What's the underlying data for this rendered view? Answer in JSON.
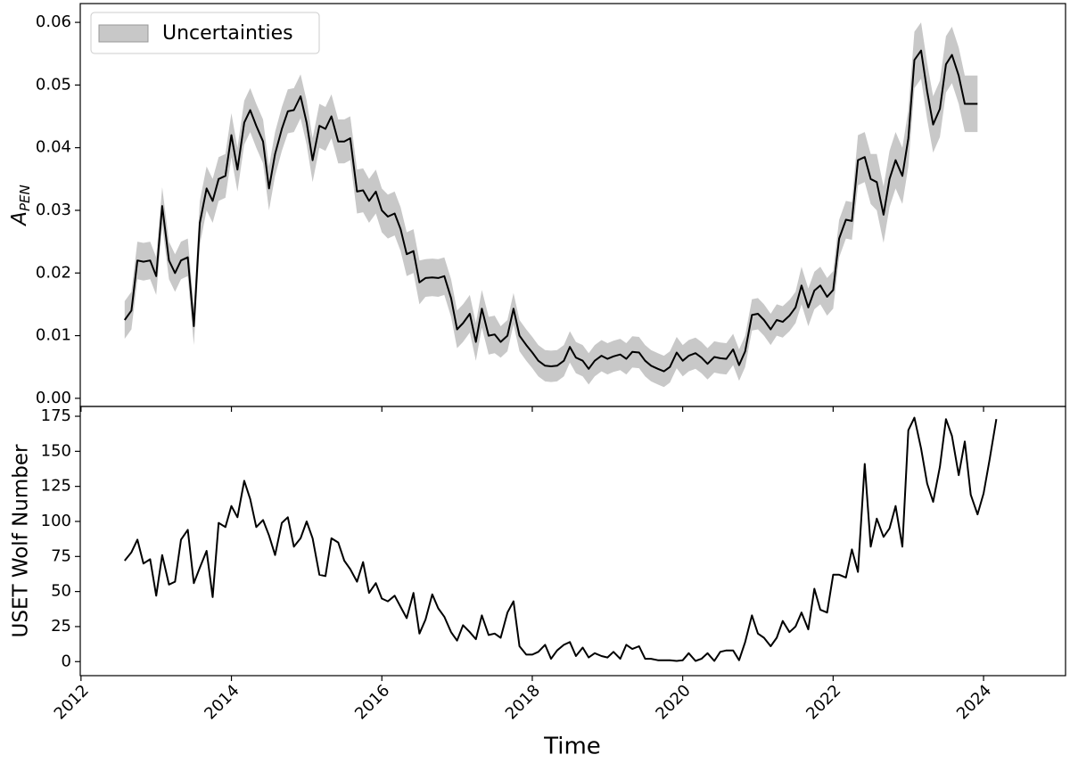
{
  "chart_data": [
    {
      "type": "line",
      "ylabel": "A",
      "ylabel_subscript": "PEN",
      "x": [
        2012.58,
        2012.67,
        2012.75,
        2012.83,
        2012.92,
        2013,
        2013.08,
        2013.17,
        2013.25,
        2013.33,
        2013.42,
        2013.5,
        2013.58,
        2013.67,
        2013.75,
        2013.83,
        2013.92,
        2014,
        2014.08,
        2014.17,
        2014.25,
        2014.33,
        2014.42,
        2014.5,
        2014.58,
        2014.67,
        2014.75,
        2014.83,
        2014.92,
        2015,
        2015.08,
        2015.17,
        2015.25,
        2015.33,
        2015.42,
        2015.5,
        2015.58,
        2015.67,
        2015.75,
        2015.83,
        2015.92,
        2016,
        2016.08,
        2016.17,
        2016.25,
        2016.33,
        2016.42,
        2016.5,
        2016.58,
        2016.67,
        2016.75,
        2016.83,
        2016.92,
        2017,
        2017.08,
        2017.17,
        2017.25,
        2017.33,
        2017.42,
        2017.5,
        2017.58,
        2017.67,
        2017.75,
        2017.83,
        2017.92,
        2018,
        2018.08,
        2018.17,
        2018.25,
        2018.33,
        2018.42,
        2018.5,
        2018.58,
        2018.67,
        2018.75,
        2018.83,
        2018.92,
        2019,
        2019.08,
        2019.17,
        2019.25,
        2019.33,
        2019.42,
        2019.5,
        2019.58,
        2019.67,
        2019.75,
        2019.83,
        2019.92,
        2020,
        2020.08,
        2020.17,
        2020.25,
        2020.33,
        2020.42,
        2020.5,
        2020.58,
        2020.67,
        2020.75,
        2020.83,
        2020.92,
        2021,
        2021.08,
        2021.17,
        2021.25,
        2021.33,
        2021.42,
        2021.5,
        2021.58,
        2021.67,
        2021.75,
        2021.83,
        2021.92,
        2022,
        2022.08,
        2022.17,
        2022.25,
        2022.33,
        2022.42,
        2022.5,
        2022.58,
        2022.67,
        2022.75,
        2022.83,
        2022.92,
        2023,
        2023.08,
        2023.17,
        2023.25,
        2023.33,
        2023.42,
        2023.5,
        2023.58,
        2023.67,
        2023.75,
        2023.83,
        2023.92
      ],
      "series": [
        {
          "color": "#000000",
          "values": [
            0.0125,
            0.014,
            0.022,
            0.0218,
            0.022,
            0.0195,
            0.0307,
            0.022,
            0.02,
            0.022,
            0.0225,
            0.0115,
            0.028,
            0.0335,
            0.0315,
            0.035,
            0.0355,
            0.042,
            0.0365,
            0.044,
            0.046,
            0.0435,
            0.041,
            0.0335,
            0.039,
            0.043,
            0.0458,
            0.046,
            0.0482,
            0.044,
            0.038,
            0.0435,
            0.043,
            0.045,
            0.041,
            0.041,
            0.0415,
            0.033,
            0.0332,
            0.0315,
            0.033,
            0.03,
            0.029,
            0.0295,
            0.027,
            0.023,
            0.0235,
            0.0185,
            0.0192,
            0.0193,
            0.0192,
            0.0195,
            0.016,
            0.011,
            0.012,
            0.0135,
            0.009,
            0.0143,
            0.01,
            0.0102,
            0.009,
            0.01,
            0.0143,
            0.01,
            0.0085,
            0.0073,
            0.006,
            0.0052,
            0.0051,
            0.0052,
            0.006,
            0.0082,
            0.0065,
            0.006,
            0.0047,
            0.006,
            0.0068,
            0.0063,
            0.0067,
            0.007,
            0.0063,
            0.0074,
            0.0073,
            0.006,
            0.0052,
            0.0047,
            0.0043,
            0.005,
            0.0073,
            0.006,
            0.0068,
            0.0072,
            0.0065,
            0.0055,
            0.0066,
            0.0064,
            0.0063,
            0.0078,
            0.0053,
            0.0075,
            0.0133,
            0.0135,
            0.0125,
            0.011,
            0.0125,
            0.0122,
            0.0132,
            0.0145,
            0.018,
            0.0145,
            0.0172,
            0.018,
            0.0162,
            0.0173,
            0.0255,
            0.0285,
            0.0283,
            0.038,
            0.0385,
            0.035,
            0.0345,
            0.0293,
            0.035,
            0.038,
            0.0355,
            0.0415,
            0.054,
            0.0555,
            0.049,
            0.0437,
            0.0462,
            0.0533,
            0.0548,
            0.0515,
            0.047,
            0.047,
            0.047
          ]
        }
      ],
      "band": {
        "name": "Uncertainties",
        "color": "#c8c8c8",
        "errors": [
          0.003,
          0.003,
          0.003,
          0.003,
          0.003,
          0.003,
          0.003,
          0.003,
          0.003,
          0.003,
          0.003,
          0.003,
          0.0035,
          0.0035,
          0.0035,
          0.0035,
          0.0035,
          0.0035,
          0.0035,
          0.0035,
          0.0035,
          0.0035,
          0.0035,
          0.0035,
          0.0035,
          0.0035,
          0.0035,
          0.0035,
          0.0035,
          0.0035,
          0.0035,
          0.0035,
          0.0035,
          0.0035,
          0.0035,
          0.0035,
          0.0035,
          0.0035,
          0.0035,
          0.0035,
          0.0035,
          0.0035,
          0.0035,
          0.0035,
          0.0035,
          0.0035,
          0.0035,
          0.0035,
          0.003,
          0.003,
          0.003,
          0.003,
          0.003,
          0.003,
          0.003,
          0.003,
          0.003,
          0.003,
          0.003,
          0.003,
          0.0025,
          0.0025,
          0.0025,
          0.0025,
          0.0025,
          0.0025,
          0.0025,
          0.0025,
          0.0025,
          0.0025,
          0.0025,
          0.0025,
          0.0025,
          0.0025,
          0.0025,
          0.0025,
          0.0025,
          0.0025,
          0.0025,
          0.0025,
          0.0025,
          0.0025,
          0.0025,
          0.0025,
          0.0025,
          0.0025,
          0.0025,
          0.0025,
          0.0025,
          0.0025,
          0.0025,
          0.0025,
          0.0025,
          0.0025,
          0.0025,
          0.0025,
          0.0025,
          0.0025,
          0.0025,
          0.0025,
          0.0025,
          0.0025,
          0.0025,
          0.0025,
          0.0025,
          0.0025,
          0.0025,
          0.0025,
          0.003,
          0.003,
          0.003,
          0.003,
          0.003,
          0.003,
          0.003,
          0.003,
          0.003,
          0.004,
          0.004,
          0.004,
          0.0045,
          0.0045,
          0.0045,
          0.0045,
          0.0045,
          0.0045,
          0.0045,
          0.0045,
          0.0045,
          0.0045,
          0.0045,
          0.0045,
          0.0045,
          0.0045,
          0.0045,
          0.0045,
          0.0045
        ]
      },
      "legend": "upper left",
      "xlim": [
        2011.99,
        2025.09
      ],
      "xticks": [
        2012,
        2014,
        2016,
        2018,
        2020,
        2022,
        2024
      ],
      "ylim": [
        -0.0013,
        0.063
      ],
      "yticks": [
        {
          "value": 0,
          "label": "0.00"
        },
        0.01,
        0.02,
        0.03,
        0.04,
        0.05,
        0.06
      ]
    },
    {
      "type": "line",
      "ylabel": "USET Wolf Number",
      "xlabel": "Time",
      "x": [
        2012.58,
        2012.67,
        2012.75,
        2012.83,
        2012.92,
        2013,
        2013.08,
        2013.17,
        2013.25,
        2013.33,
        2013.42,
        2013.5,
        2013.58,
        2013.67,
        2013.75,
        2013.83,
        2013.92,
        2014,
        2014.08,
        2014.17,
        2014.25,
        2014.33,
        2014.42,
        2014.5,
        2014.58,
        2014.67,
        2014.75,
        2014.83,
        2014.92,
        2015,
        2015.08,
        2015.17,
        2015.25,
        2015.33,
        2015.42,
        2015.5,
        2015.58,
        2015.67,
        2015.75,
        2015.83,
        2015.92,
        2016,
        2016.08,
        2016.17,
        2016.25,
        2016.33,
        2016.42,
        2016.5,
        2016.58,
        2016.67,
        2016.75,
        2016.83,
        2016.92,
        2017,
        2017.08,
        2017.17,
        2017.25,
        2017.33,
        2017.42,
        2017.5,
        2017.58,
        2017.67,
        2017.75,
        2017.83,
        2017.92,
        2018,
        2018.08,
        2018.17,
        2018.25,
        2018.33,
        2018.42,
        2018.5,
        2018.58,
        2018.67,
        2018.75,
        2018.83,
        2018.92,
        2019,
        2019.08,
        2019.17,
        2019.25,
        2019.33,
        2019.42,
        2019.5,
        2019.58,
        2019.67,
        2019.75,
        2019.83,
        2019.92,
        2020,
        2020.08,
        2020.17,
        2020.25,
        2020.33,
        2020.42,
        2020.5,
        2020.58,
        2020.67,
        2020.75,
        2020.83,
        2020.92,
        2021,
        2021.08,
        2021.17,
        2021.25,
        2021.33,
        2021.42,
        2021.5,
        2021.58,
        2021.67,
        2021.75,
        2021.83,
        2021.92,
        2022,
        2022.08,
        2022.17,
        2022.25,
        2022.33,
        2022.42,
        2022.5,
        2022.58,
        2022.67,
        2022.75,
        2022.83,
        2022.92,
        2023,
        2023.08,
        2023.17,
        2023.25,
        2023.33,
        2023.42,
        2023.5,
        2023.58,
        2023.67,
        2023.75,
        2023.83,
        2023.92,
        2024,
        2024.08,
        2024.17
      ],
      "series": [
        {
          "color": "#000000",
          "values": [
            72,
            78,
            87,
            70,
            73,
            47,
            76,
            55,
            57,
            87,
            94,
            56,
            67,
            79,
            46,
            99,
            96,
            111,
            103,
            129,
            116,
            96,
            101,
            90,
            76,
            99,
            103,
            82,
            88,
            100,
            88,
            62,
            61,
            88,
            85,
            72,
            66,
            57,
            71,
            49,
            56,
            45,
            43,
            47,
            39,
            31,
            49,
            20,
            30,
            48,
            38,
            32,
            21,
            15,
            26,
            21,
            16,
            33,
            19,
            20,
            17,
            35,
            43,
            11,
            5,
            5,
            7,
            12,
            2,
            8,
            12,
            14,
            4,
            10,
            3,
            6,
            4,
            3,
            7,
            2,
            12,
            9,
            11,
            2,
            2,
            1,
            1,
            1,
            0.5,
            1,
            6,
            0.5,
            2,
            6,
            0.5,
            7,
            8,
            8,
            1,
            14,
            33,
            20,
            17,
            11,
            17,
            29,
            21,
            25,
            35,
            23,
            52,
            37,
            35,
            62,
            62,
            60,
            80,
            64,
            141,
            82,
            102,
            89,
            95,
            111,
            82,
            165,
            174,
            152,
            127,
            114,
            139,
            173,
            161,
            133,
            157,
            119,
            105,
            120,
            144,
            173
          ]
        }
      ],
      "xlim": [
        2011.99,
        2025.09
      ],
      "xticks": [
        2012,
        2014,
        2016,
        2018,
        2020,
        2022,
        2024
      ],
      "ylim": [
        -10,
        182
      ],
      "yticks": [
        0,
        25,
        50,
        75,
        100,
        125,
        150,
        175
      ]
    }
  ]
}
